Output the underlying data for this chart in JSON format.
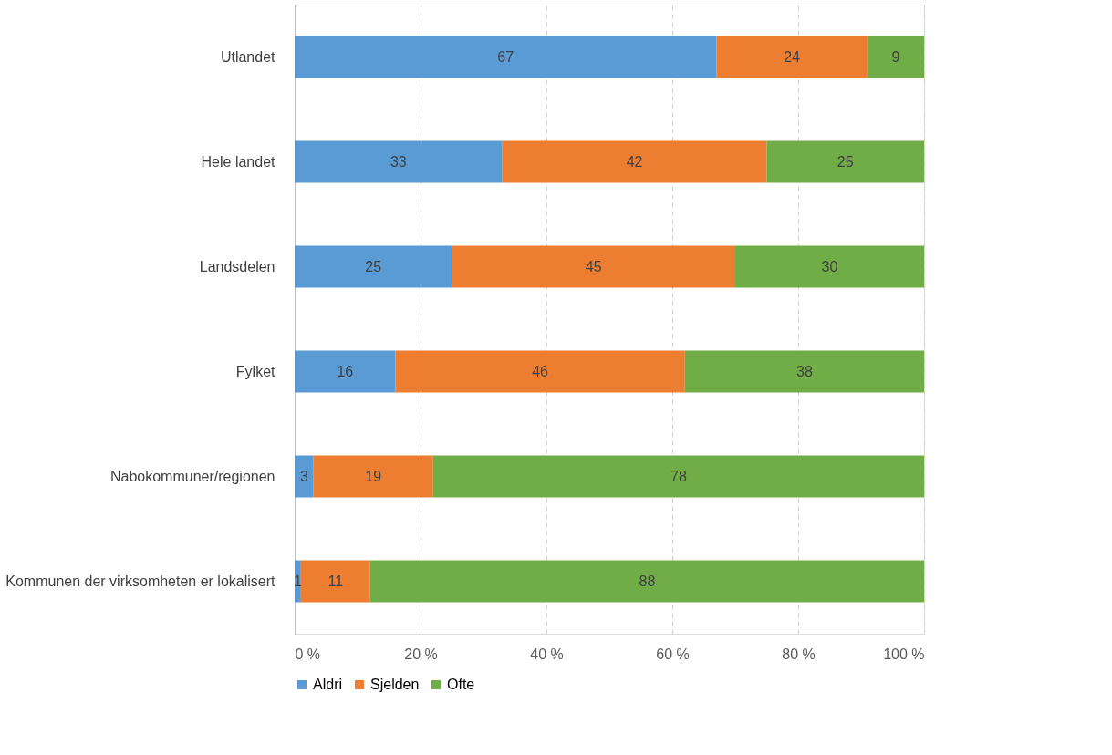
{
  "chart_data": {
    "type": "bar",
    "orientation": "horizontal",
    "stacked": true,
    "categories": [
      "Utlandet",
      "Hele landet",
      "Landsdelen",
      "Fylket",
      "Nabokommuner/regionen",
      "Kommunen der virksomheten er lokalisert"
    ],
    "series": [
      {
        "name": "Aldri",
        "color": "#5b9bd5",
        "values": [
          67,
          33,
          25,
          16,
          3,
          1
        ]
      },
      {
        "name": "Sjelden",
        "color": "#ed7d31",
        "values": [
          24,
          42,
          45,
          46,
          19,
          11
        ]
      },
      {
        "name": "Ofte",
        "color": "#70ad47",
        "values": [
          9,
          25,
          30,
          38,
          78,
          88
        ]
      }
    ],
    "xlim": [
      0,
      100
    ],
    "xticks": [
      {
        "value": 0,
        "label": "0 %"
      },
      {
        "value": 20,
        "label": "20 %"
      },
      {
        "value": 40,
        "label": "40 %"
      },
      {
        "value": 60,
        "label": "60 %"
      },
      {
        "value": 80,
        "label": "80 %"
      },
      {
        "value": 100,
        "label": "100 %"
      }
    ],
    "grid": "x",
    "line_style": "dashed",
    "legend": "bottom",
    "data_labels": true
  }
}
